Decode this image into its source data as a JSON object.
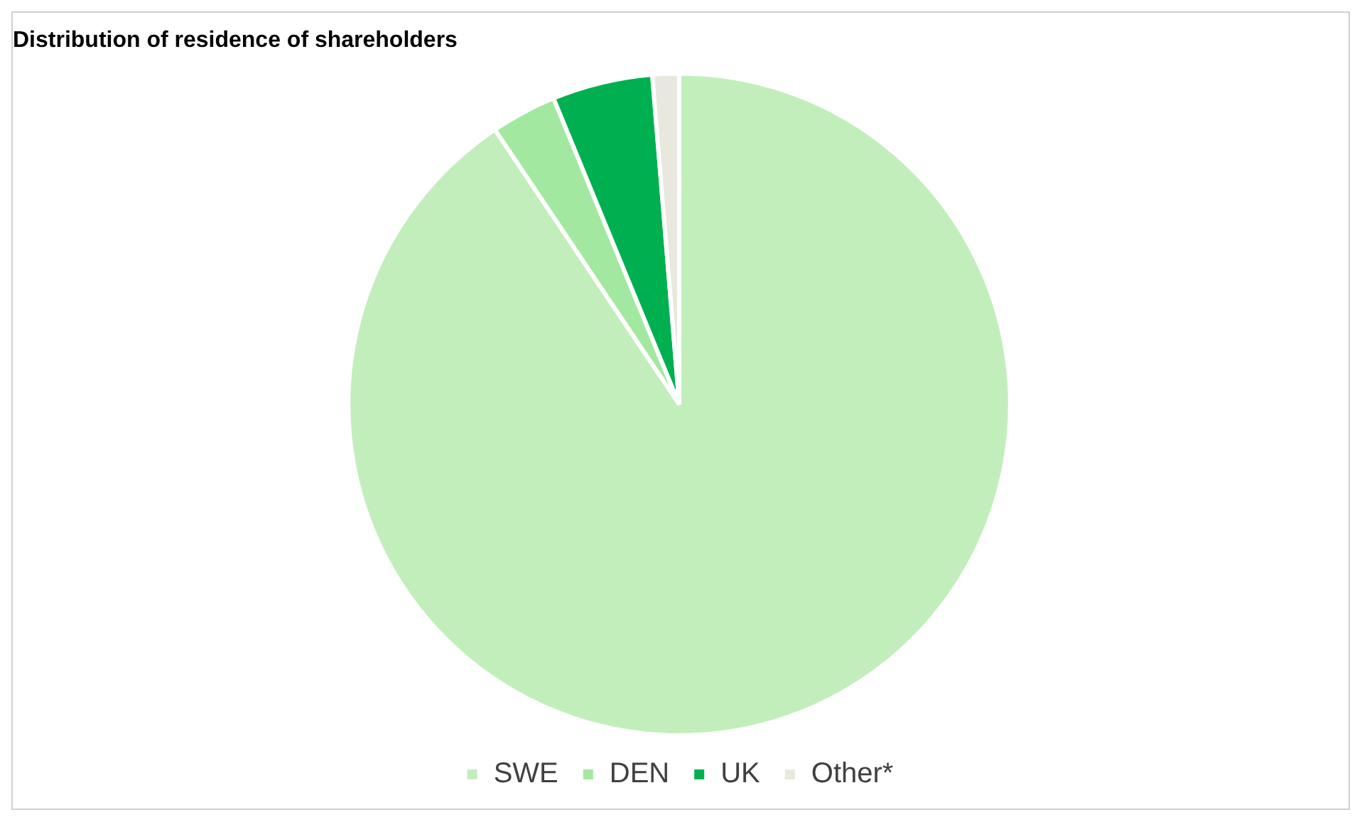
{
  "chart_data": {
    "type": "pie",
    "title": "Distribution of residence of shareholders",
    "categories": [
      "SWE",
      "DEN",
      "UK",
      "Other*"
    ],
    "values": [
      90.6,
      3.2,
      4.9,
      1.3
    ],
    "colors": [
      "#c2eebc",
      "#a3e8a0",
      "#00b050",
      "#e8e8de"
    ],
    "legend": "bottom"
  }
}
